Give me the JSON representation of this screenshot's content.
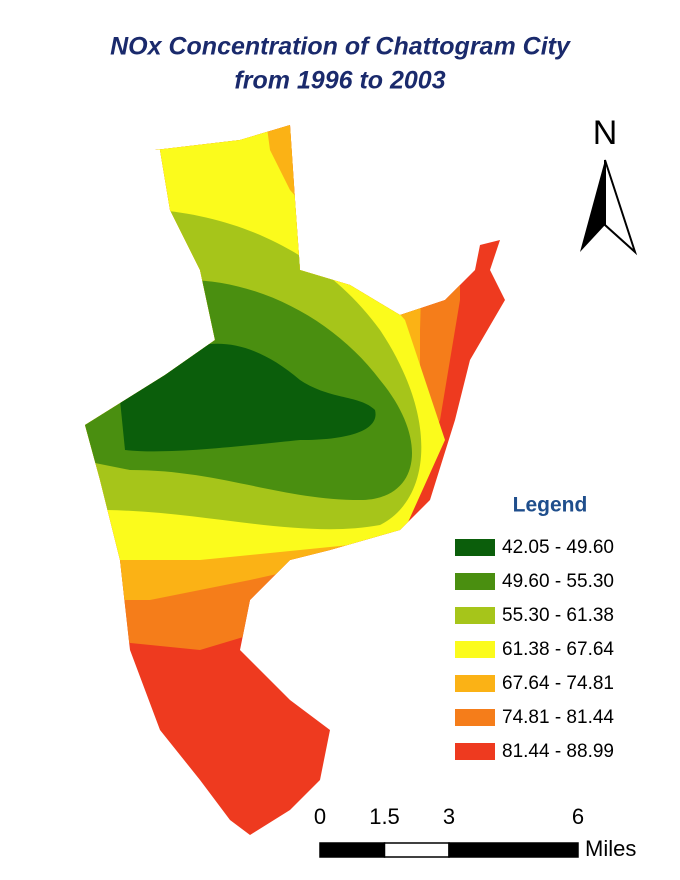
{
  "title": [
    "NOx Concentration of Chattogram City",
    "from 1996 to 2003"
  ],
  "north": "N",
  "legend": {
    "title": "Legend",
    "items": [
      {
        "label": "42.05 - 49.60",
        "color": "#0b5e0b"
      },
      {
        "label": "49.60 - 55.30",
        "color": "#4a8f10"
      },
      {
        "label": "55.30 - 61.38",
        "color": "#a6c51a"
      },
      {
        "label": "61.38 - 67.64",
        "color": "#fbfb1c"
      },
      {
        "label": "67.64 - 74.81",
        "color": "#fbb215"
      },
      {
        "label": "74.81 - 81.44",
        "color": "#f57d1a"
      },
      {
        "label": "81.44 - 88.99",
        "color": "#ee3a1f"
      }
    ]
  },
  "scale_bar": {
    "ticks": [
      0,
      1.5,
      3,
      6
    ],
    "unit": "Miles"
  }
}
